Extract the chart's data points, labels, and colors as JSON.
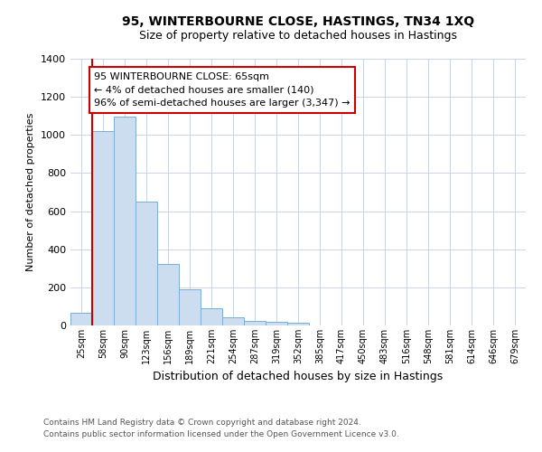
{
  "title": "95, WINTERBOURNE CLOSE, HASTINGS, TN34 1XQ",
  "subtitle": "Size of property relative to detached houses in Hastings",
  "xlabel": "Distribution of detached houses by size in Hastings",
  "ylabel": "Number of detached properties",
  "bin_labels": [
    "25sqm",
    "58sqm",
    "90sqm",
    "123sqm",
    "156sqm",
    "189sqm",
    "221sqm",
    "254sqm",
    "287sqm",
    "319sqm",
    "352sqm",
    "385sqm",
    "417sqm",
    "450sqm",
    "483sqm",
    "516sqm",
    "548sqm",
    "581sqm",
    "614sqm",
    "646sqm",
    "679sqm"
  ],
  "bar_heights": [
    65,
    1020,
    1095,
    650,
    325,
    190,
    90,
    45,
    22,
    18,
    12,
    0,
    0,
    0,
    0,
    0,
    0,
    0,
    0,
    0,
    0
  ],
  "bar_color": "#ccddf0",
  "bar_edge_color": "#7bafd4",
  "property_line_color": "#cc0000",
  "annotation_box_text": "95 WINTERBOURNE CLOSE: 65sqm\n← 4% of detached houses are smaller (140)\n96% of semi-detached houses are larger (3,347) →",
  "annotation_box_color": "#cc0000",
  "ylim": [
    0,
    1400
  ],
  "yticks": [
    0,
    200,
    400,
    600,
    800,
    1000,
    1200,
    1400
  ],
  "footer_line1": "Contains HM Land Registry data © Crown copyright and database right 2024.",
  "footer_line2": "Contains public sector information licensed under the Open Government Licence v3.0.",
  "bg_color": "#ffffff",
  "grid_color": "#c8d4e8",
  "title_fontsize": 10,
  "subtitle_fontsize": 9,
  "ylabel_fontsize": 8,
  "xlabel_fontsize": 9,
  "ytick_fontsize": 8,
  "xtick_fontsize": 7,
  "footer_fontsize": 6.5,
  "annot_fontsize": 8
}
